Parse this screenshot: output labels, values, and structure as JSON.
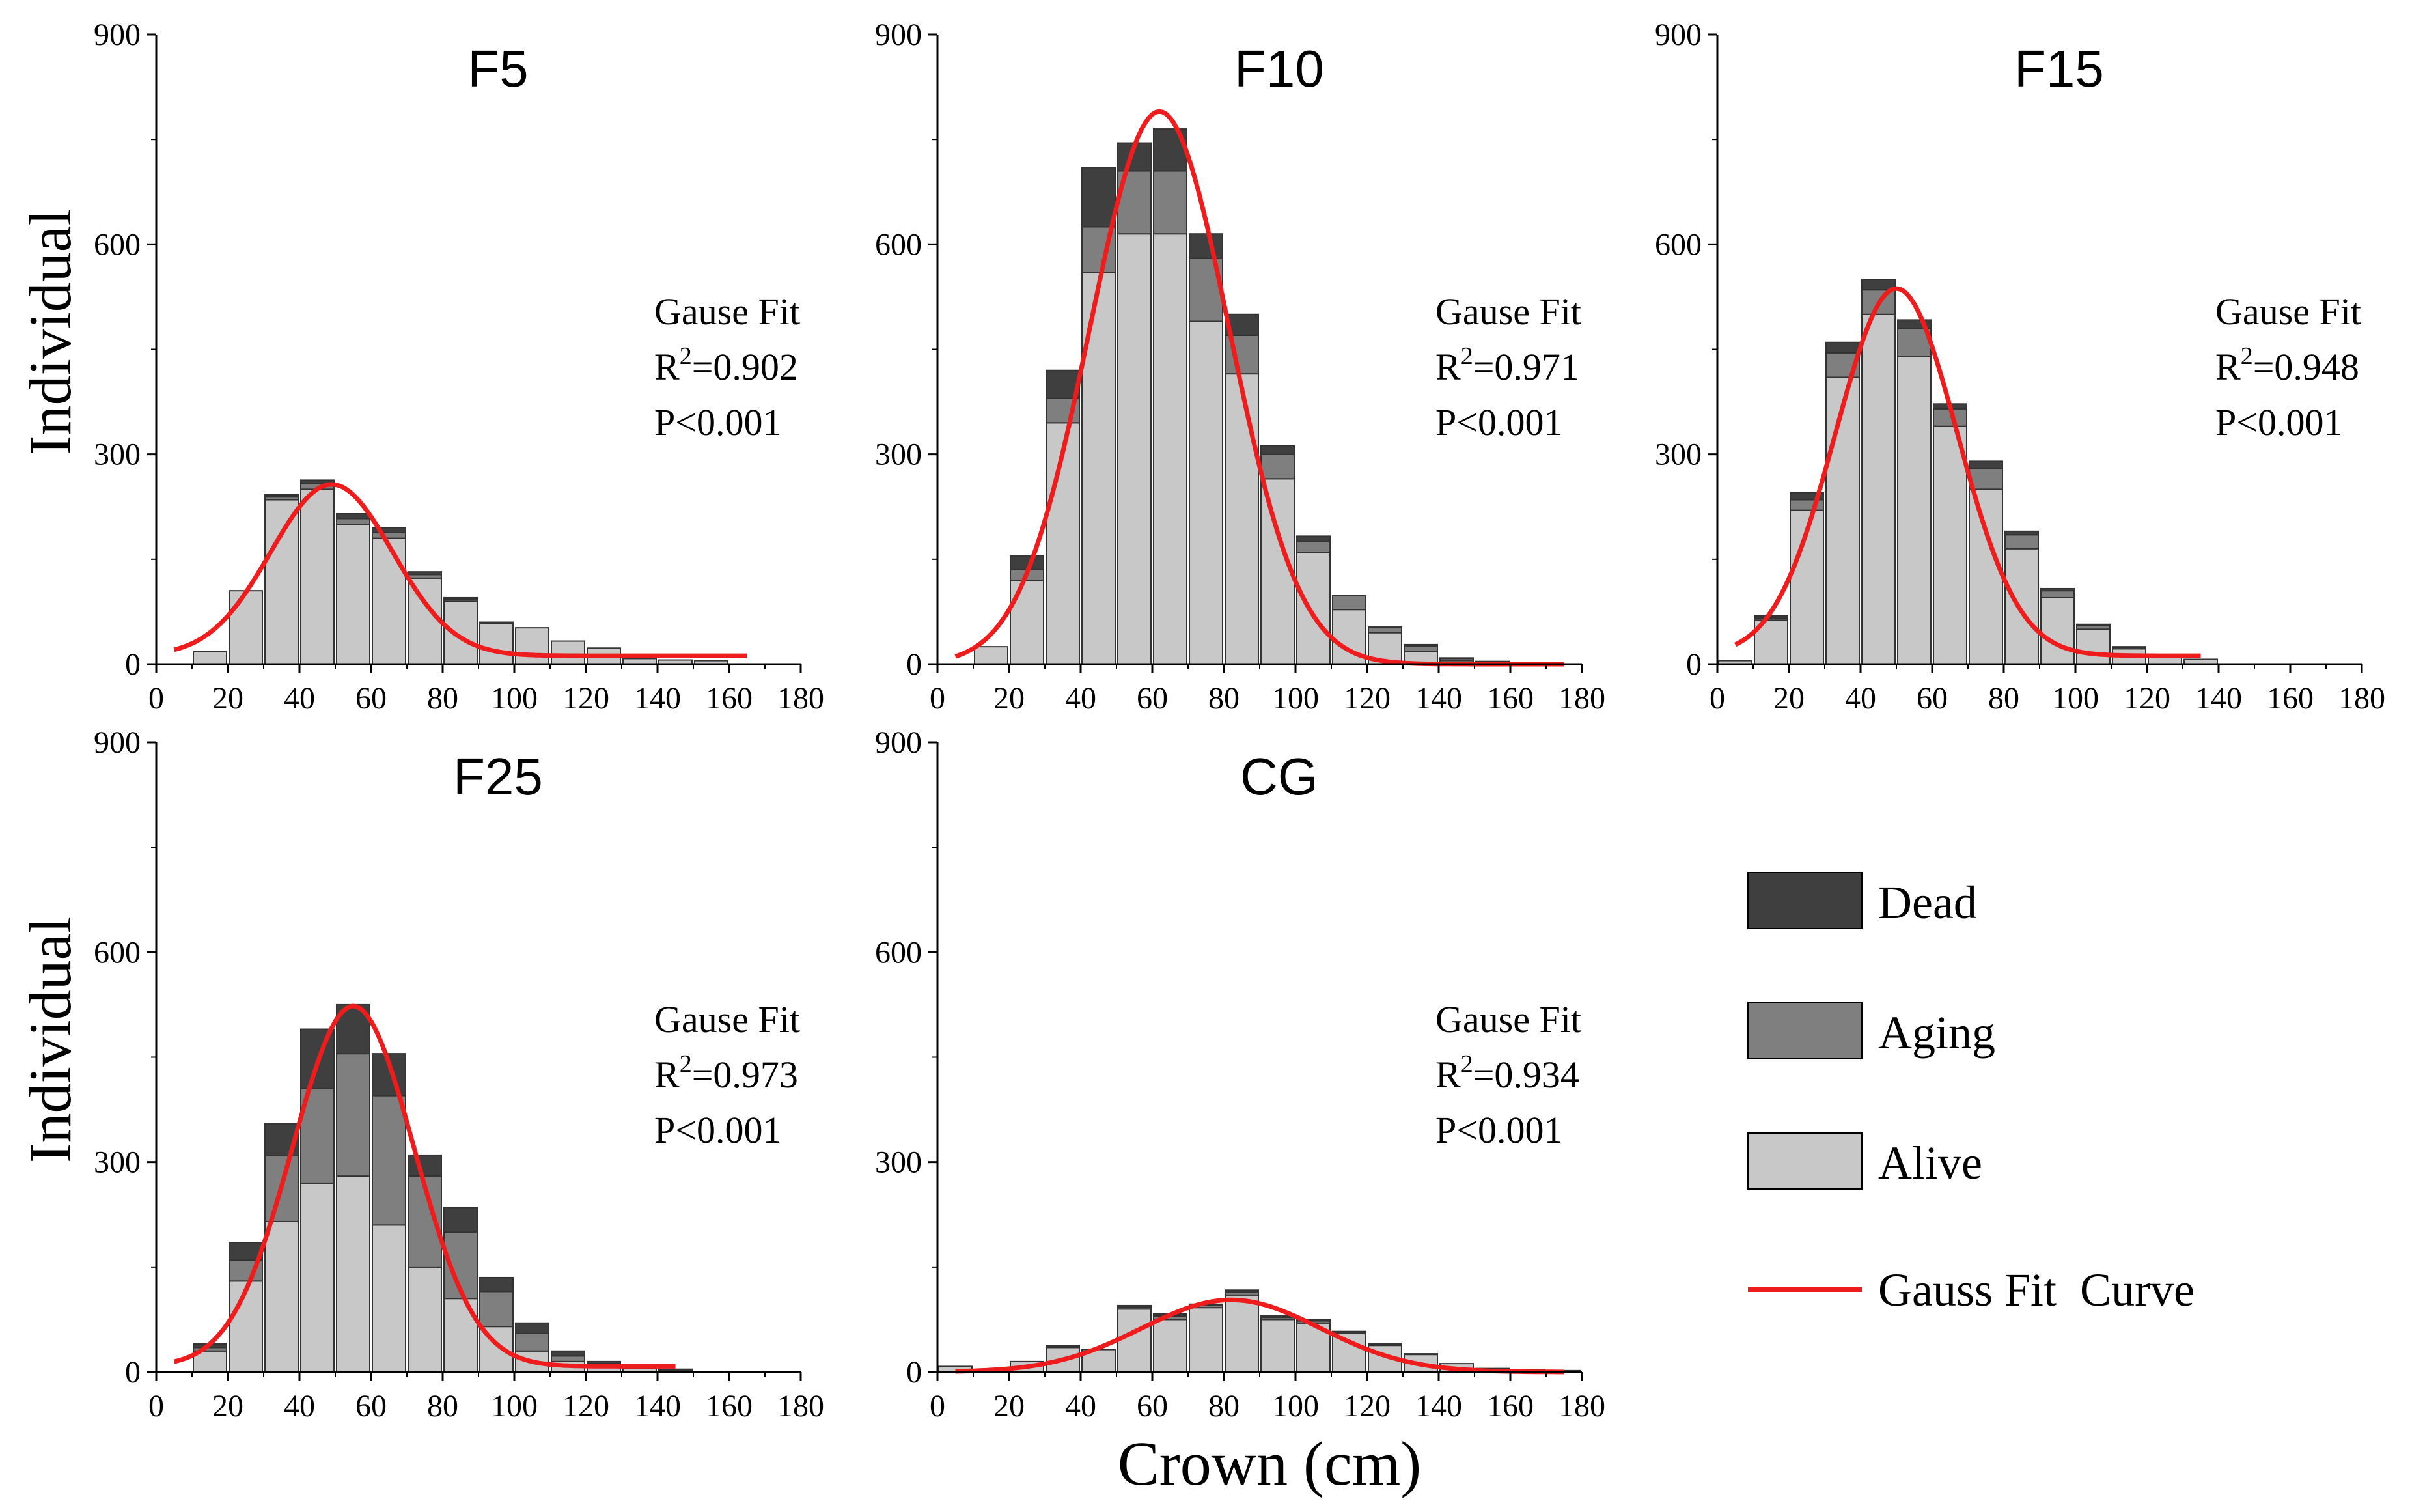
{
  "figure": {
    "y_axis_label": "Individual",
    "x_axis_label": "Crown (cm)",
    "legend": {
      "items": [
        {
          "label": "Dead",
          "color": "#3f3f3f",
          "kind": "box"
        },
        {
          "label": "Aging",
          "color": "#7f7f7f",
          "kind": "box"
        },
        {
          "label": "Alive",
          "color": "#c8c8c8",
          "kind": "box"
        },
        {
          "label": "Gauss Fit  Curve",
          "color": "#ee1c1c",
          "kind": "line"
        }
      ]
    }
  },
  "chart_data": [
    {
      "type": "bar",
      "stacked": true,
      "title": "F5",
      "xlabel": "Crown (cm)",
      "ylabel": "Individual",
      "xlim": [
        0,
        180
      ],
      "ylim": [
        0,
        900
      ],
      "xticks": [
        0,
        20,
        40,
        60,
        80,
        100,
        120,
        140,
        160,
        180
      ],
      "yticks": [
        0,
        300,
        600,
        900
      ],
      "bin_width": 10,
      "categories": [
        10,
        20,
        30,
        40,
        50,
        60,
        70,
        80,
        90,
        100,
        110,
        120,
        130,
        140,
        150
      ],
      "series": [
        {
          "name": "Alive",
          "values": [
            18,
            105,
            235,
            250,
            200,
            180,
            123,
            90,
            58,
            52,
            33,
            23,
            8,
            6,
            5
          ]
        },
        {
          "name": "Aging",
          "values": [
            0,
            0,
            4,
            8,
            8,
            8,
            5,
            3,
            0,
            0,
            0,
            0,
            0,
            0,
            0
          ]
        },
        {
          "name": "Dead",
          "values": [
            0,
            0,
            3,
            5,
            7,
            7,
            4,
            2,
            2,
            0,
            0,
            0,
            0,
            0,
            0
          ]
        }
      ],
      "fit_curve": {
        "name": "Gauss Fit Curve",
        "mean": 49,
        "sd": 17,
        "amplitude": 245,
        "baseline": 12,
        "x_range": [
          5,
          165
        ]
      },
      "annotation": {
        "fit_label": "Gause Fit",
        "r2_prefix": "R",
        "r2_sup": "2",
        "r2_value": "=0.902",
        "p_text": "P<0.001"
      }
    },
    {
      "type": "bar",
      "stacked": true,
      "title": "F10",
      "xlabel": "Crown (cm)",
      "ylabel": "Individual",
      "xlim": [
        0,
        180
      ],
      "ylim": [
        0,
        900
      ],
      "xticks": [
        0,
        20,
        40,
        60,
        80,
        100,
        120,
        140,
        160,
        180
      ],
      "yticks": [
        0,
        300,
        600,
        900
      ],
      "bin_width": 10,
      "categories": [
        10,
        20,
        30,
        40,
        50,
        60,
        70,
        80,
        90,
        100,
        110,
        120,
        130,
        140,
        150,
        160
      ],
      "series": [
        {
          "name": "Alive",
          "values": [
            25,
            120,
            345,
            560,
            615,
            615,
            490,
            415,
            265,
            160,
            78,
            45,
            18,
            5,
            3,
            1
          ]
        },
        {
          "name": "Aging",
          "values": [
            0,
            15,
            35,
            65,
            90,
            90,
            90,
            55,
            35,
            15,
            20,
            8,
            8,
            3,
            1,
            0
          ]
        },
        {
          "name": "Dead",
          "values": [
            0,
            20,
            40,
            85,
            40,
            60,
            35,
            30,
            12,
            8,
            0,
            0,
            2,
            1,
            0,
            0
          ]
        }
      ],
      "fit_curve": {
        "name": "Gauss Fit Curve",
        "mean": 62,
        "sd": 19.5,
        "amplitude": 790,
        "baseline": 0,
        "x_range": [
          5,
          175
        ]
      },
      "annotation": {
        "fit_label": "Gause Fit",
        "r2_prefix": "R",
        "r2_sup": "2",
        "r2_value": "=0.971",
        "p_text": "P<0.001"
      }
    },
    {
      "type": "bar",
      "stacked": true,
      "title": "F15",
      "xlabel": "Crown (cm)",
      "ylabel": "Individual",
      "xlim": [
        0,
        180
      ],
      "ylim": [
        0,
        900
      ],
      "xticks": [
        0,
        20,
        40,
        60,
        80,
        100,
        120,
        140,
        160,
        180
      ],
      "yticks": [
        0,
        300,
        600,
        900
      ],
      "bin_width": 10,
      "categories": [
        0,
        10,
        20,
        30,
        40,
        50,
        60,
        70,
        80,
        90,
        100,
        110,
        120,
        130
      ],
      "series": [
        {
          "name": "Alive",
          "values": [
            5,
            63,
            220,
            410,
            500,
            440,
            340,
            250,
            165,
            95,
            50,
            22,
            12,
            7
          ]
        },
        {
          "name": "Aging",
          "values": [
            0,
            3,
            15,
            35,
            35,
            40,
            25,
            30,
            20,
            10,
            5,
            2,
            0,
            0
          ]
        },
        {
          "name": "Dead",
          "values": [
            0,
            3,
            10,
            15,
            15,
            12,
            7,
            10,
            5,
            3,
            2,
            1,
            0,
            0
          ]
        }
      ],
      "fit_curve": {
        "name": "Gauss Fit Curve",
        "mean": 50,
        "sd": 17,
        "amplitude": 525,
        "baseline": 12,
        "x_range": [
          5,
          135
        ]
      },
      "annotation": {
        "fit_label": "Gause Fit",
        "r2_prefix": "R",
        "r2_sup": "2",
        "r2_value": "=0.948",
        "p_text": "P<0.001"
      }
    },
    {
      "type": "bar",
      "stacked": true,
      "title": "F25",
      "xlabel": "Crown (cm)",
      "ylabel": "Individual",
      "xlim": [
        0,
        180
      ],
      "ylim": [
        0,
        900
      ],
      "xticks": [
        0,
        20,
        40,
        60,
        80,
        100,
        120,
        140,
        160,
        180
      ],
      "yticks": [
        0,
        300,
        600,
        900
      ],
      "bin_width": 10,
      "categories": [
        10,
        20,
        30,
        40,
        50,
        60,
        70,
        80,
        90,
        100,
        110,
        120,
        130,
        140
      ],
      "series": [
        {
          "name": "Alive",
          "values": [
            30,
            130,
            215,
            270,
            280,
            210,
            150,
            105,
            65,
            30,
            15,
            8,
            5,
            1
          ]
        },
        {
          "name": "Aging",
          "values": [
            5,
            30,
            95,
            135,
            175,
            185,
            130,
            95,
            50,
            25,
            8,
            4,
            2,
            1
          ]
        },
        {
          "name": "Dead",
          "values": [
            5,
            25,
            45,
            85,
            70,
            60,
            30,
            35,
            20,
            15,
            7,
            3,
            3,
            2
          ]
        }
      ],
      "fit_curve": {
        "name": "Gauss Fit Curve",
        "mean": 55,
        "sd": 17,
        "amplitude": 515,
        "baseline": 8,
        "x_range": [
          5,
          145
        ]
      },
      "annotation": {
        "fit_label": "Gause Fit",
        "r2_prefix": "R",
        "r2_sup": "2",
        "r2_value": "=0.973",
        "p_text": "P<0.001"
      }
    },
    {
      "type": "bar",
      "stacked": true,
      "title": "CG",
      "xlabel": "Crown (cm)",
      "ylabel": "Individual",
      "xlim": [
        0,
        180
      ],
      "ylim": [
        0,
        900
      ],
      "xticks": [
        0,
        20,
        40,
        60,
        80,
        100,
        120,
        140,
        160,
        180
      ],
      "yticks": [
        0,
        300,
        600,
        900
      ],
      "bin_width": 10,
      "categories": [
        0,
        10,
        20,
        30,
        40,
        50,
        60,
        70,
        80,
        90,
        100,
        110,
        120,
        130,
        140,
        150,
        160,
        170
      ],
      "series": [
        {
          "name": "Alive",
          "values": [
            8,
            3,
            15,
            35,
            32,
            90,
            75,
            92,
            110,
            75,
            70,
            55,
            38,
            25,
            12,
            5,
            3,
            2
          ]
        },
        {
          "name": "Aging",
          "values": [
            0,
            0,
            0,
            2,
            0,
            3,
            5,
            3,
            4,
            3,
            3,
            2,
            2,
            1,
            0,
            0,
            0,
            0
          ]
        },
        {
          "name": "Dead",
          "values": [
            0,
            0,
            0,
            1,
            0,
            2,
            3,
            2,
            3,
            2,
            2,
            1,
            0,
            0,
            0,
            0,
            0,
            0
          ]
        }
      ],
      "fit_curve": {
        "name": "Gauss Fit Curve",
        "mean": 82,
        "sd": 25,
        "amplitude": 103,
        "baseline": 0,
        "x_range": [
          5,
          175
        ]
      },
      "annotation": {
        "fit_label": "Gause Fit",
        "r2_prefix": "R",
        "r2_sup": "2",
        "r2_value": "=0.934",
        "p_text": "P<0.001"
      }
    }
  ]
}
